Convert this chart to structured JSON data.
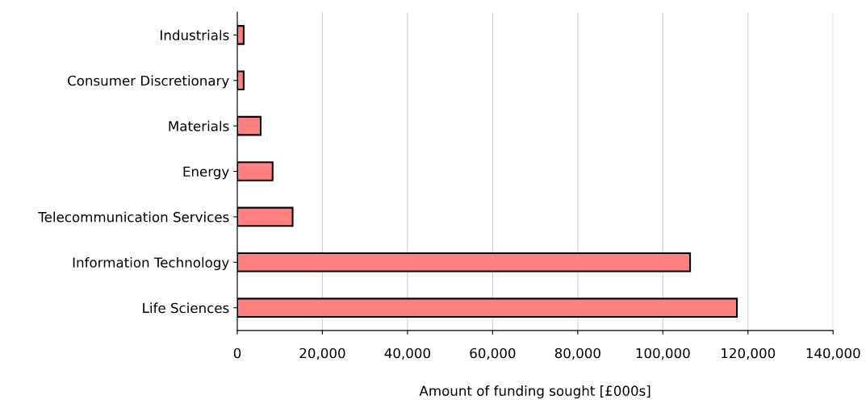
{
  "chart_data": {
    "type": "bar",
    "orientation": "horizontal",
    "xlabel": "Amount of funding sought [£000s]",
    "categories": [
      "Industrials",
      "Consumer Discretionary",
      "Materials",
      "Energy",
      "Telecommunication Services",
      "Information Technology",
      "Life Sciences"
    ],
    "values": [
      1500,
      1500,
      5500,
      8300,
      13000,
      106400,
      117400
    ],
    "color": "#ff8080",
    "xlim": [
      0,
      140000
    ],
    "xticks": [
      {
        "value": 0,
        "label": "0"
      },
      {
        "value": 20000,
        "label": "20,000"
      },
      {
        "value": 40000,
        "label": "40,000"
      },
      {
        "value": 60000,
        "label": "60,000"
      },
      {
        "value": 80000,
        "label": "80,000"
      },
      {
        "value": 100000,
        "label": "100,000"
      },
      {
        "value": 120000,
        "label": "120,000"
      },
      {
        "value": 140000,
        "label": "140,000"
      }
    ],
    "grid": "x",
    "legend": false
  }
}
